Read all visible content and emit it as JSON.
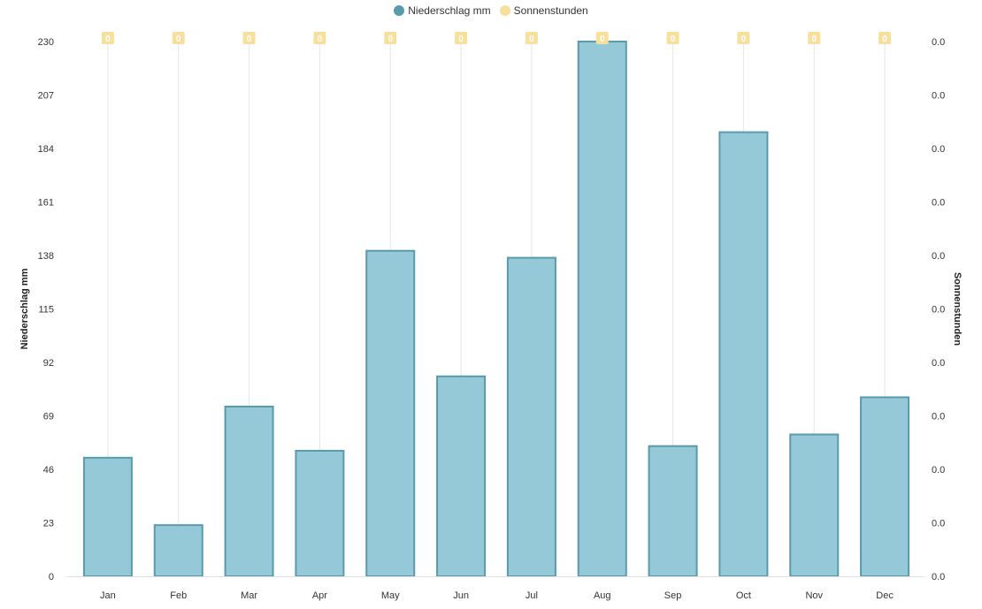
{
  "chart_data": {
    "type": "bar",
    "categories": [
      "Jan",
      "Feb",
      "Mar",
      "Apr",
      "May",
      "Jun",
      "Jul",
      "Aug",
      "Sep",
      "Oct",
      "Nov",
      "Dec"
    ],
    "series": [
      {
        "name": "Niederschlag mm",
        "type": "bar",
        "axis": "left",
        "color": "#95c9d8",
        "border_color": "#5a9aad",
        "values": [
          51,
          22,
          73,
          54,
          140,
          86,
          137,
          230,
          56,
          191,
          61,
          77
        ]
      },
      {
        "name": "Sonnenstunden",
        "type": "line",
        "axis": "right",
        "color": "#f7df9c",
        "values": [
          0,
          0,
          0,
          0,
          0,
          0,
          0,
          0,
          0,
          0,
          0,
          0
        ],
        "data_labels": [
          "0",
          "0",
          "0",
          "0",
          "0",
          "0",
          "0",
          "0",
          "0",
          "0",
          "0",
          "0"
        ]
      }
    ],
    "ylabel_left": "Niederschlag mm",
    "ylabel_right": "Sonnenstunden",
    "ylim_left": [
      0,
      230
    ],
    "yticks_left": [
      "0",
      "23",
      "46",
      "69",
      "92",
      "115",
      "138",
      "161",
      "184",
      "207",
      "230"
    ],
    "yticks_right": [
      "0.0",
      "0.0",
      "0.0",
      "0.0",
      "0.0",
      "0.0",
      "0.0",
      "0.0",
      "0.0",
      "0.0",
      "0.0"
    ],
    "grid": "vertical",
    "legend_position": "top-center"
  },
  "legend": {
    "items": [
      {
        "label": "Niederschlag mm",
        "color": "#5a9aad"
      },
      {
        "label": "Sonnenstunden",
        "color": "#f7df9c"
      }
    ]
  }
}
